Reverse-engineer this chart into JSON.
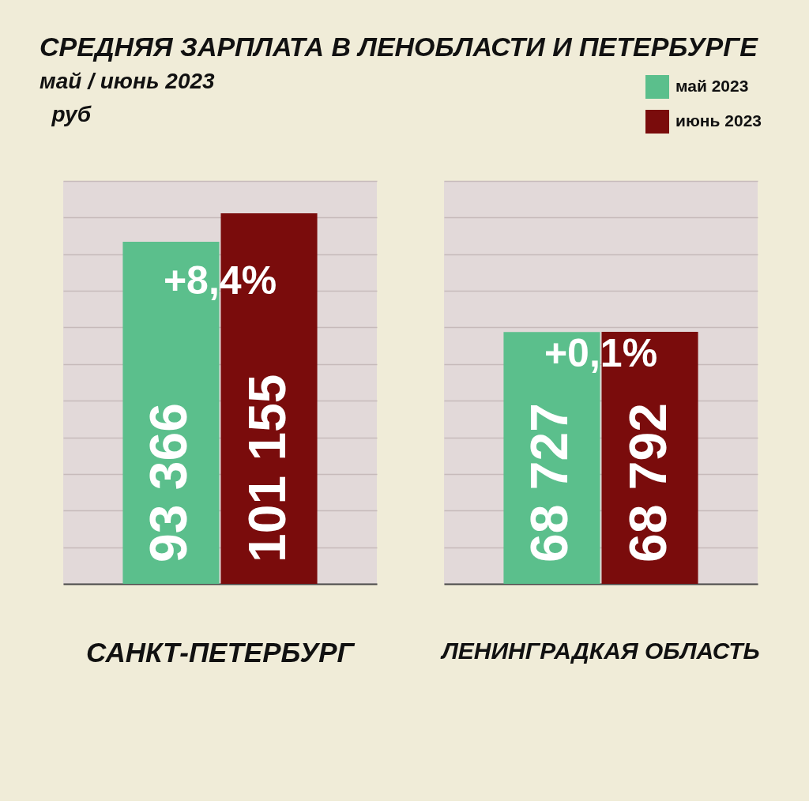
{
  "chart_data": [
    {
      "type": "bar",
      "title": "СРЕДНЯЯ ЗАРПЛАТА В ЛЕНОБЛАСТИ И ПЕТЕРБУРГЕ",
      "subtitle": "май / июнь 2023",
      "ylabel": "руб",
      "categories": [
        "САНКТ-ПЕТЕРБУРГ"
      ],
      "series": [
        {
          "name": "май 2023",
          "color": "#5bbf8c",
          "values": [
            93366
          ],
          "value_labels": [
            "93 366"
          ]
        },
        {
          "name": "июнь 2023",
          "color": "#7a0c0c",
          "values": [
            101155
          ],
          "value_labels": [
            "101 155"
          ]
        }
      ],
      "ylim": [
        0,
        110000
      ],
      "tick_labels": "x",
      "grid": "y",
      "legend": "top right",
      "annotations": [
        {
          "text": "+8,4%",
          "x": "САНКТ-ПЕТЕРБУРГ",
          "y": 82500
        }
      ]
    },
    {
      "type": "bar",
      "categories": [
        "ЛЕНИНГРАДКАЯ ОБЛАСТЬ"
      ],
      "series": [
        {
          "name": "май 2023",
          "color": "#5bbf8c",
          "values": [
            68727
          ],
          "value_labels": [
            "68 727"
          ]
        },
        {
          "name": "июнь 2023",
          "color": "#7a0c0c",
          "values": [
            68792
          ],
          "value_labels": [
            "68 792"
          ]
        }
      ],
      "ylim": [
        0,
        110000
      ],
      "tick_labels": "x",
      "grid": "y",
      "legend": "top right",
      "annotations": [
        {
          "text": "+0,1%",
          "x": "ЛЕНИНГРАДКАЯ ОБЛАСТЬ",
          "y": 62500
        }
      ]
    }
  ]
}
